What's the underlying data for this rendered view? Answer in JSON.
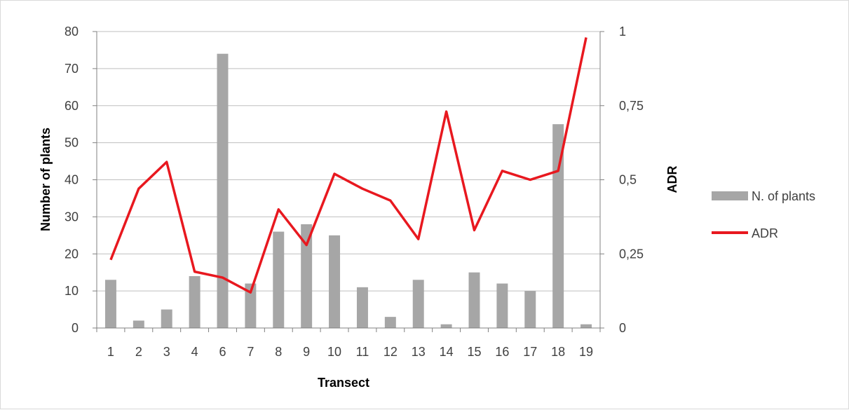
{
  "chart_data": {
    "type": "bar+line",
    "categories": [
      "1",
      "2",
      "3",
      "4",
      "6",
      "7",
      "8",
      "9",
      "10",
      "11",
      "12",
      "13",
      "14",
      "15",
      "16",
      "17",
      "18",
      "19"
    ],
    "series": [
      {
        "name": "N. of plants",
        "type": "bar",
        "axis": "left",
        "color": "#a6a6a6",
        "values": [
          13,
          2,
          5,
          14,
          74,
          12,
          26,
          28,
          25,
          11,
          3,
          13,
          1,
          15,
          12,
          10,
          55,
          1
        ]
      },
      {
        "name": "ADR",
        "type": "line",
        "axis": "right",
        "color": "#e8181f",
        "values": [
          0.23,
          0.47,
          0.56,
          0.19,
          0.17,
          0.12,
          0.4,
          0.28,
          0.52,
          0.47,
          0.43,
          0.3,
          0.73,
          0.33,
          0.53,
          0.5,
          0.53,
          0.98
        ]
      }
    ],
    "xlabel": "Transect",
    "ylabel": "Number of plants",
    "y2label": "ADR",
    "ylim": [
      0,
      80
    ],
    "y2lim": [
      0,
      1
    ],
    "yticks": [
      "0",
      "10",
      "20",
      "30",
      "40",
      "50",
      "60",
      "70",
      "80"
    ],
    "y2ticks": [
      "0",
      "0,25",
      "0,5",
      "0,75",
      "1"
    ],
    "grid": true,
    "legend_position": "right"
  }
}
